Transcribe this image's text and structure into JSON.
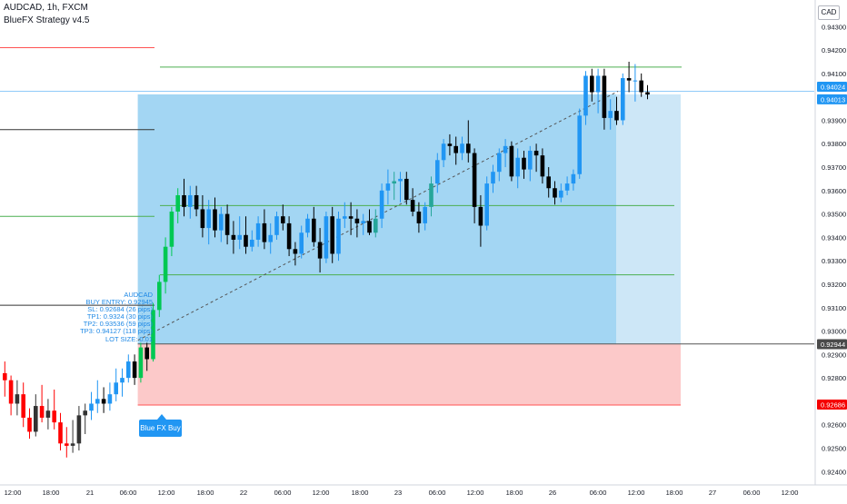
{
  "header": {
    "symbol_line": "AUDCAD, 1h, FXCM",
    "strategy_line": "BlueFX Strategy v4.5",
    "currency": "CAD"
  },
  "info_panel": {
    "lines": [
      "AUDCAD",
      "BUY ENTRY: 0.92945",
      "SL: 0.92684 (26 pips)",
      "TP1: 0.9324 (30 pips)",
      "TP2: 0.93536 (59 pips)",
      "TP3: 0.94127 (118 pips)",
      "LOT SIZE: 0.01"
    ]
  },
  "signal_label": "Blue FX Buy",
  "colors": {
    "up": "#26a69a",
    "bull_candle": "#2196f3",
    "bear_candle": "#000000",
    "early_up": "#333333",
    "early_down": "#ff0000",
    "breakout_up": "#00c853",
    "profit_zone": "#a3d6f3",
    "profit_zone_light": "#cde7f7",
    "loss_zone": "#fcc9c9",
    "tp_line": "#4caf50",
    "sl_line": "#ff5252",
    "current_price_line": "#90caf9",
    "entry_badge": "#4a4a4a",
    "sl_badge": "#f50000",
    "price_badge": "#2196f3"
  },
  "chart_data": {
    "type": "candlestick",
    "symbol": "AUDCAD",
    "timeframe": "1h",
    "y_axis": {
      "ticks": [
        "0.94300",
        "0.94200",
        "0.94100",
        "0.94000",
        "0.93900",
        "0.93800",
        "0.93700",
        "0.93600",
        "0.93500",
        "0.93400",
        "0.93300",
        "0.93200",
        "0.93100",
        "0.93000",
        "0.92900",
        "0.92800",
        "0.92700",
        "0.92600",
        "0.92500",
        "0.92400"
      ],
      "ylim": [
        0.9237,
        0.9434
      ]
    },
    "x_axis": {
      "ticks": [
        "12:00",
        "18:00",
        "21",
        "06:00",
        "12:00",
        "18:00",
        "22",
        "06:00",
        "12:00",
        "18:00",
        "23",
        "06:00",
        "12:00",
        "18:00",
        "26",
        "06:00",
        "12:00",
        "18:00",
        "27",
        "06:00",
        "12:00"
      ]
    },
    "price_badges": [
      {
        "label": "0.94024",
        "value": 0.94024,
        "kind": "price"
      },
      {
        "label": "0.94013",
        "value": 0.94013,
        "kind": "price"
      },
      {
        "label": "0.92944",
        "value": 0.92944,
        "kind": "entry"
      },
      {
        "label": "0.92686",
        "value": 0.92686,
        "kind": "sl"
      }
    ],
    "levels": {
      "entry": 0.92945,
      "sl": 0.92684,
      "tp1": 0.9324,
      "tp2": 0.93536,
      "tp3": 0.94127,
      "current": 0.94024
    },
    "candles": [
      {
        "o": 0.9282,
        "h": 0.9287,
        "l": 0.9272,
        "c": 0.9279
      },
      {
        "o": 0.9279,
        "h": 0.9281,
        "l": 0.9264,
        "c": 0.9269
      },
      {
        "o": 0.9269,
        "h": 0.9279,
        "l": 0.9264,
        "c": 0.9273
      },
      {
        "o": 0.9273,
        "h": 0.9278,
        "l": 0.9259,
        "c": 0.9263
      },
      {
        "o": 0.9263,
        "h": 0.9267,
        "l": 0.9254,
        "c": 0.9257
      },
      {
        "o": 0.9257,
        "h": 0.9273,
        "l": 0.9255,
        "c": 0.9268
      },
      {
        "o": 0.9268,
        "h": 0.9277,
        "l": 0.9261,
        "c": 0.9263
      },
      {
        "o": 0.9263,
        "h": 0.9271,
        "l": 0.9258,
        "c": 0.9266
      },
      {
        "o": 0.9266,
        "h": 0.9275,
        "l": 0.9258,
        "c": 0.9261
      },
      {
        "o": 0.9261,
        "h": 0.9265,
        "l": 0.9249,
        "c": 0.9252
      },
      {
        "o": 0.9252,
        "h": 0.9259,
        "l": 0.9246,
        "c": 0.9251
      },
      {
        "o": 0.9251,
        "h": 0.9262,
        "l": 0.9248,
        "c": 0.9252
      },
      {
        "o": 0.9252,
        "h": 0.9268,
        "l": 0.9249,
        "c": 0.9264
      },
      {
        "o": 0.9264,
        "h": 0.9269,
        "l": 0.9256,
        "c": 0.9266
      },
      {
        "o": 0.9266,
        "h": 0.9274,
        "l": 0.9262,
        "c": 0.9269
      },
      {
        "o": 0.9269,
        "h": 0.9279,
        "l": 0.9265,
        "c": 0.9271
      },
      {
        "o": 0.9271,
        "h": 0.9276,
        "l": 0.9265,
        "c": 0.9269
      },
      {
        "o": 0.9269,
        "h": 0.9278,
        "l": 0.9266,
        "c": 0.9273
      },
      {
        "o": 0.9273,
        "h": 0.9284,
        "l": 0.927,
        "c": 0.9278
      },
      {
        "o": 0.9278,
        "h": 0.9284,
        "l": 0.9272,
        "c": 0.928
      },
      {
        "o": 0.928,
        "h": 0.929,
        "l": 0.9278,
        "c": 0.9287
      },
      {
        "o": 0.9287,
        "h": 0.929,
        "l": 0.9277,
        "c": 0.928
      },
      {
        "o": 0.928,
        "h": 0.9295,
        "l": 0.9278,
        "c": 0.9293
      },
      {
        "o": 0.9293,
        "h": 0.9295,
        "l": 0.9283,
        "c": 0.9288
      },
      {
        "o": 0.9288,
        "h": 0.9312,
        "l": 0.9287,
        "c": 0.9309
      },
      {
        "o": 0.9309,
        "h": 0.9324,
        "l": 0.9306,
        "c": 0.9321
      },
      {
        "o": 0.9321,
        "h": 0.934,
        "l": 0.9316,
        "c": 0.9336
      },
      {
        "o": 0.9336,
        "h": 0.9353,
        "l": 0.9332,
        "c": 0.9351
      },
      {
        "o": 0.9351,
        "h": 0.9361,
        "l": 0.9346,
        "c": 0.9358
      },
      {
        "o": 0.9358,
        "h": 0.9365,
        "l": 0.9349,
        "c": 0.9353
      },
      {
        "o": 0.9353,
        "h": 0.9362,
        "l": 0.9348,
        "c": 0.9358
      },
      {
        "o": 0.9358,
        "h": 0.9362,
        "l": 0.9349,
        "c": 0.9352
      },
      {
        "o": 0.9352,
        "h": 0.9358,
        "l": 0.934,
        "c": 0.9344
      },
      {
        "o": 0.9344,
        "h": 0.9356,
        "l": 0.9337,
        "c": 0.9352
      },
      {
        "o": 0.9352,
        "h": 0.9357,
        "l": 0.934,
        "c": 0.9343
      },
      {
        "o": 0.9343,
        "h": 0.9353,
        "l": 0.9338,
        "c": 0.935
      },
      {
        "o": 0.935,
        "h": 0.9354,
        "l": 0.9337,
        "c": 0.9341
      },
      {
        "o": 0.9341,
        "h": 0.9347,
        "l": 0.9333,
        "c": 0.9339
      },
      {
        "o": 0.9339,
        "h": 0.9349,
        "l": 0.9335,
        "c": 0.9341
      },
      {
        "o": 0.9341,
        "h": 0.9349,
        "l": 0.9333,
        "c": 0.9336
      },
      {
        "o": 0.9336,
        "h": 0.9343,
        "l": 0.9334,
        "c": 0.9339
      },
      {
        "o": 0.9339,
        "h": 0.9349,
        "l": 0.9336,
        "c": 0.9346
      },
      {
        "o": 0.9346,
        "h": 0.9352,
        "l": 0.9335,
        "c": 0.9338
      },
      {
        "o": 0.9338,
        "h": 0.9346,
        "l": 0.9333,
        "c": 0.9341
      },
      {
        "o": 0.9341,
        "h": 0.9351,
        "l": 0.9339,
        "c": 0.9349
      },
      {
        "o": 0.9349,
        "h": 0.9354,
        "l": 0.9343,
        "c": 0.9346
      },
      {
        "o": 0.9346,
        "h": 0.9349,
        "l": 0.9332,
        "c": 0.9335
      },
      {
        "o": 0.9335,
        "h": 0.9338,
        "l": 0.9328,
        "c": 0.9333
      },
      {
        "o": 0.9333,
        "h": 0.9345,
        "l": 0.9331,
        "c": 0.9342
      },
      {
        "o": 0.9342,
        "h": 0.935,
        "l": 0.934,
        "c": 0.9348
      },
      {
        "o": 0.9348,
        "h": 0.9353,
        "l": 0.9336,
        "c": 0.9338
      },
      {
        "o": 0.9338,
        "h": 0.9344,
        "l": 0.9325,
        "c": 0.9331
      },
      {
        "o": 0.9331,
        "h": 0.9351,
        "l": 0.9329,
        "c": 0.9349
      },
      {
        "o": 0.9349,
        "h": 0.9353,
        "l": 0.9329,
        "c": 0.9333
      },
      {
        "o": 0.9333,
        "h": 0.9351,
        "l": 0.933,
        "c": 0.9348
      },
      {
        "o": 0.9348,
        "h": 0.9355,
        "l": 0.9344,
        "c": 0.9349
      },
      {
        "o": 0.9349,
        "h": 0.9355,
        "l": 0.9341,
        "c": 0.9348
      },
      {
        "o": 0.9348,
        "h": 0.9352,
        "l": 0.934,
        "c": 0.9346
      },
      {
        "o": 0.9346,
        "h": 0.935,
        "l": 0.9341,
        "c": 0.9347
      },
      {
        "o": 0.9347,
        "h": 0.9352,
        "l": 0.9341,
        "c": 0.9342
      },
      {
        "o": 0.9342,
        "h": 0.9352,
        "l": 0.934,
        "c": 0.9348
      },
      {
        "o": 0.9348,
        "h": 0.9363,
        "l": 0.9344,
        "c": 0.936
      },
      {
        "o": 0.936,
        "h": 0.9369,
        "l": 0.9354,
        "c": 0.9363
      },
      {
        "o": 0.9363,
        "h": 0.9368,
        "l": 0.9356,
        "c": 0.9364
      },
      {
        "o": 0.9364,
        "h": 0.9368,
        "l": 0.9355,
        "c": 0.9365
      },
      {
        "o": 0.9365,
        "h": 0.9368,
        "l": 0.9354,
        "c": 0.9356
      },
      {
        "o": 0.9356,
        "h": 0.9361,
        "l": 0.9349,
        "c": 0.9351
      },
      {
        "o": 0.9351,
        "h": 0.9355,
        "l": 0.9342,
        "c": 0.9346
      },
      {
        "o": 0.9346,
        "h": 0.9355,
        "l": 0.9343,
        "c": 0.9353
      },
      {
        "o": 0.9353,
        "h": 0.9366,
        "l": 0.9349,
        "c": 0.9363
      },
      {
        "o": 0.9363,
        "h": 0.9376,
        "l": 0.9359,
        "c": 0.9373
      },
      {
        "o": 0.9373,
        "h": 0.9382,
        "l": 0.937,
        "c": 0.938
      },
      {
        "o": 0.938,
        "h": 0.9384,
        "l": 0.9375,
        "c": 0.9379
      },
      {
        "o": 0.9379,
        "h": 0.9383,
        "l": 0.9371,
        "c": 0.9376
      },
      {
        "o": 0.9376,
        "h": 0.9383,
        "l": 0.9373,
        "c": 0.938
      },
      {
        "o": 0.938,
        "h": 0.939,
        "l": 0.9372,
        "c": 0.9376
      },
      {
        "o": 0.9376,
        "h": 0.9378,
        "l": 0.9346,
        "c": 0.9353
      },
      {
        "o": 0.9353,
        "h": 0.9358,
        "l": 0.9336,
        "c": 0.9345
      },
      {
        "o": 0.9345,
        "h": 0.9366,
        "l": 0.9343,
        "c": 0.9363
      },
      {
        "o": 0.9363,
        "h": 0.9371,
        "l": 0.9359,
        "c": 0.9368
      },
      {
        "o": 0.9368,
        "h": 0.9378,
        "l": 0.9364,
        "c": 0.9376
      },
      {
        "o": 0.9376,
        "h": 0.9382,
        "l": 0.937,
        "c": 0.9379
      },
      {
        "o": 0.9379,
        "h": 0.9381,
        "l": 0.9364,
        "c": 0.9366
      },
      {
        "o": 0.9366,
        "h": 0.9378,
        "l": 0.9361,
        "c": 0.9374
      },
      {
        "o": 0.9374,
        "h": 0.9377,
        "l": 0.9365,
        "c": 0.9369
      },
      {
        "o": 0.9369,
        "h": 0.9379,
        "l": 0.9364,
        "c": 0.9377
      },
      {
        "o": 0.9377,
        "h": 0.938,
        "l": 0.9368,
        "c": 0.9375
      },
      {
        "o": 0.9375,
        "h": 0.9378,
        "l": 0.9363,
        "c": 0.9366
      },
      {
        "o": 0.9366,
        "h": 0.937,
        "l": 0.9357,
        "c": 0.9361
      },
      {
        "o": 0.9361,
        "h": 0.9364,
        "l": 0.9354,
        "c": 0.9357
      },
      {
        "o": 0.9357,
        "h": 0.9363,
        "l": 0.9355,
        "c": 0.936
      },
      {
        "o": 0.936,
        "h": 0.9366,
        "l": 0.9358,
        "c": 0.9363
      },
      {
        "o": 0.9363,
        "h": 0.9369,
        "l": 0.936,
        "c": 0.9367
      },
      {
        "o": 0.9367,
        "h": 0.9395,
        "l": 0.9365,
        "c": 0.9392
      },
      {
        "o": 0.9392,
        "h": 0.9411,
        "l": 0.9388,
        "c": 0.9409
      },
      {
        "o": 0.9409,
        "h": 0.9412,
        "l": 0.9398,
        "c": 0.9402
      },
      {
        "o": 0.9402,
        "h": 0.9412,
        "l": 0.9393,
        "c": 0.9409
      },
      {
        "o": 0.9409,
        "h": 0.9412,
        "l": 0.9386,
        "c": 0.9391
      },
      {
        "o": 0.9391,
        "h": 0.9399,
        "l": 0.9386,
        "c": 0.9394
      },
      {
        "o": 0.9394,
        "h": 0.94,
        "l": 0.9388,
        "c": 0.939
      },
      {
        "o": 0.939,
        "h": 0.941,
        "l": 0.9388,
        "c": 0.9408
      },
      {
        "o": 0.9408,
        "h": 0.9415,
        "l": 0.9402,
        "c": 0.9407
      },
      {
        "o": 0.9407,
        "h": 0.9414,
        "l": 0.9398,
        "c": 0.9407
      },
      {
        "o": 0.9407,
        "h": 0.941,
        "l": 0.94,
        "c": 0.9402
      },
      {
        "o": 0.9402,
        "h": 0.9405,
        "l": 0.9399,
        "c": 0.9401
      }
    ],
    "signal_bar": 21,
    "projection_start_bar": 22,
    "grid": false,
    "legend": "none"
  }
}
